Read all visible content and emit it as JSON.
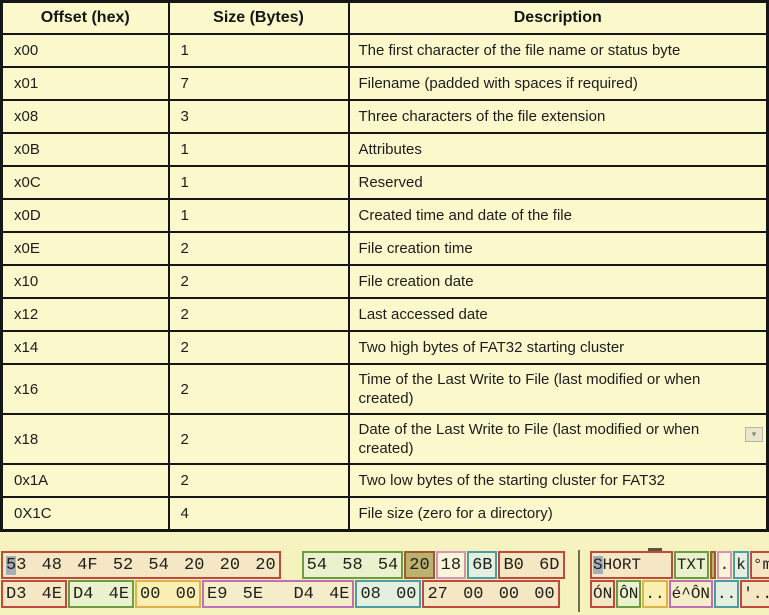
{
  "table": {
    "headers": [
      "Offset (hex)",
      "Size (Bytes)",
      "Description"
    ],
    "rows": [
      [
        "x00",
        "1",
        "The first character of the file name or status byte"
      ],
      [
        "x01",
        "7",
        "Filename (padded with spaces if required)"
      ],
      [
        "x08",
        "3",
        "Three characters of the file extension"
      ],
      [
        "x0B",
        "1",
        "Attributes"
      ],
      [
        "x0C",
        "1",
        "Reserved"
      ],
      [
        "x0D",
        "1",
        "Created time and date of the file"
      ],
      [
        "x0E",
        "2",
        "File creation time"
      ],
      [
        "x10",
        "2",
        "File creation date"
      ],
      [
        "x12",
        "2",
        "Last accessed date"
      ],
      [
        "x14",
        "2",
        "Two high bytes of FAT32 starting cluster"
      ],
      [
        "x16",
        "2",
        "Time of the Last Write to File (last modified or when created)"
      ],
      [
        "x18",
        "2",
        "Date of the Last Write to File (last modified or when created)"
      ],
      [
        "0x1A",
        "2",
        "Two low bytes of the starting cluster for FAT32"
      ],
      [
        "0X1C",
        "4",
        "File size (zero for a directory)"
      ]
    ]
  },
  "scroll_marker": {
    "icon": "chevron-down-icon",
    "glyph": "▾"
  },
  "hex_editor": {
    "rows": [
      {
        "hex_groups": [
          {
            "bytes": "53 48 4F 52 54 20 20 20",
            "style": "red",
            "cursor_first_char": true
          },
          {
            "bytes": "54 58 54",
            "style": "green",
            "gap_before": true
          },
          {
            "bytes": "20",
            "style": "olive"
          },
          {
            "bytes": "18",
            "style": "pink"
          },
          {
            "bytes": "6B",
            "style": "teal"
          },
          {
            "bytes": "B0 6D",
            "style": "red"
          }
        ],
        "ascii_groups": [
          {
            "text": "SHORT   ",
            "style": "red",
            "cursor_first_char": true
          },
          {
            "text": "TXT",
            "style": "green"
          },
          {
            "text": " ",
            "style": "olive"
          },
          {
            "text": ".",
            "style": "pink"
          },
          {
            "text": "k",
            "style": "teal"
          },
          {
            "text": "°m",
            "style": "red"
          }
        ]
      },
      {
        "hex_groups": [
          {
            "bytes": "D3 4E",
            "style": "red"
          },
          {
            "bytes": "D4 4E",
            "style": "green"
          },
          {
            "bytes": "00 00",
            "style": "yellow"
          },
          {
            "bytes": "E9 5E  D4 4E",
            "style": "magenta"
          },
          {
            "bytes": "08 00",
            "style": "teal"
          },
          {
            "bytes": "27 00 00 00",
            "style": "red"
          }
        ],
        "ascii_groups": [
          {
            "text": "ÓN",
            "style": "red"
          },
          {
            "text": "ÔN",
            "style": "green"
          },
          {
            "text": "..",
            "style": "yellow"
          },
          {
            "text": "é^ÔN",
            "style": "magenta"
          },
          {
            "text": "..",
            "style": "teal"
          },
          {
            "text": "'...",
            "style": "red"
          }
        ]
      }
    ]
  },
  "colors": {
    "page_background": "#f7f3c0",
    "table_background": "#fbf9cc",
    "table_border": "#161616",
    "cursor_highlight": "#a4aeb8",
    "field_styles": {
      "red": {
        "border": "#bf4a3c",
        "fill": "#f5e7c3"
      },
      "green": {
        "border": "#6e9c43",
        "fill": "#eaf2cd"
      },
      "olive": {
        "border": "#9c5b32",
        "fill": "#bcb26e"
      },
      "pink": {
        "border": "#d494b4",
        "fill": "#faf4da"
      },
      "teal": {
        "border": "#4e9ba1",
        "fill": "#e3efdf"
      },
      "yellow": {
        "border": "#e0b04a",
        "fill": "#faf0b4"
      },
      "magenta": {
        "border": "#bd71b4",
        "fill": "#f5ecca"
      }
    }
  }
}
